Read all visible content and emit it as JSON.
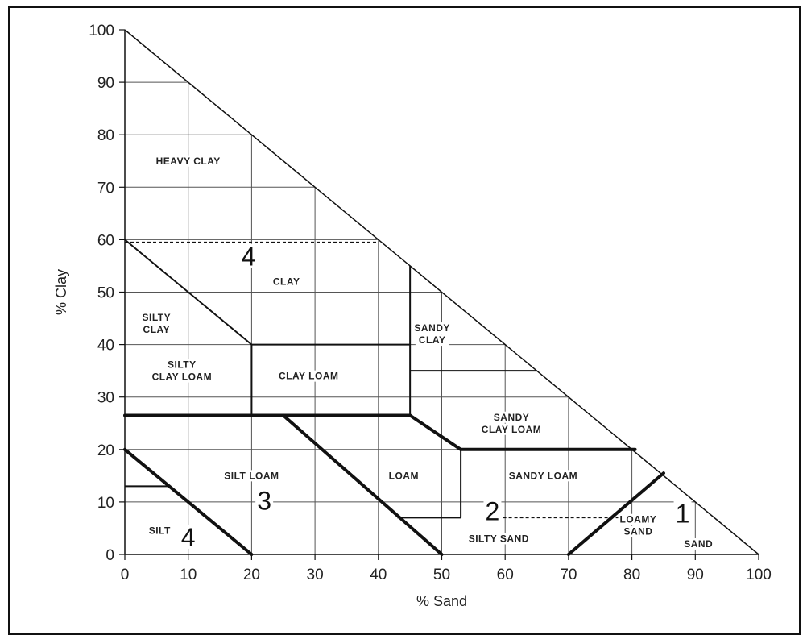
{
  "chart_data": {
    "type": "ternary-texture-triangle",
    "xlabel": "% Sand",
    "ylabel": "% Clay",
    "xlim": [
      0,
      100
    ],
    "ylim": [
      0,
      100
    ],
    "xticks": [
      0,
      10,
      20,
      30,
      40,
      50,
      60,
      70,
      80,
      90,
      100
    ],
    "yticks": [
      0,
      10,
      20,
      30,
      40,
      50,
      60,
      70,
      80,
      90,
      100
    ],
    "grid": true,
    "regions": [
      {
        "label": [
          "HEAVY CLAY"
        ],
        "x": 10,
        "y": 75
      },
      {
        "label": [
          "CLAY"
        ],
        "x": 25.5,
        "y": 52
      },
      {
        "label": [
          "SILTY",
          "CLAY"
        ],
        "x": 5,
        "y": 44
      },
      {
        "label": [
          "SILTY",
          "CLAY LOAM"
        ],
        "x": 9,
        "y": 35
      },
      {
        "label": [
          "CLAY LOAM"
        ],
        "x": 29,
        "y": 34
      },
      {
        "label": [
          "SANDY",
          "CLAY"
        ],
        "x": 48.5,
        "y": 42
      },
      {
        "label": [
          "SANDY",
          "CLAY LOAM"
        ],
        "x": 61,
        "y": 25
      },
      {
        "label": [
          "SILT LOAM"
        ],
        "x": 20,
        "y": 15
      },
      {
        "label": [
          "LOAM"
        ],
        "x": 44,
        "y": 15
      },
      {
        "label": [
          "SANDY LOAM"
        ],
        "x": 66,
        "y": 15
      },
      {
        "label": [
          "SILT"
        ],
        "x": 5.5,
        "y": 4.5
      },
      {
        "label": [
          "SILTY SAND"
        ],
        "x": 59,
        "y": 3
      },
      {
        "label": [
          "LOAMY",
          "SAND"
        ],
        "x": 81,
        "y": 5.5
      },
      {
        "label": [
          "SAND"
        ],
        "x": 90.5,
        "y": 2
      }
    ],
    "zone_labels": [
      {
        "text": "4",
        "x": 19.5,
        "y": 55.5
      },
      {
        "text": "3",
        "x": 22,
        "y": 9
      },
      {
        "text": "4",
        "x": 10,
        "y": 2
      },
      {
        "text": "2",
        "x": 58,
        "y": 7
      },
      {
        "text": "1",
        "x": 88,
        "y": 6.5
      }
    ],
    "grid_lines": [
      [
        [
          10,
          0
        ],
        [
          10,
          90
        ]
      ],
      [
        [
          20,
          0
        ],
        [
          20,
          80
        ]
      ],
      [
        [
          30,
          0
        ],
        [
          30,
          70
        ]
      ],
      [
        [
          40,
          0
        ],
        [
          40,
          60
        ]
      ],
      [
        [
          50,
          0
        ],
        [
          50,
          50
        ]
      ],
      [
        [
          60,
          0
        ],
        [
          60,
          40
        ]
      ],
      [
        [
          70,
          0
        ],
        [
          70,
          30
        ]
      ],
      [
        [
          80,
          0
        ],
        [
          80,
          20
        ]
      ],
      [
        [
          90,
          0
        ],
        [
          90,
          10
        ]
      ],
      [
        [
          0,
          10
        ],
        [
          90,
          10
        ]
      ],
      [
        [
          0,
          20
        ],
        [
          80,
          20
        ]
      ],
      [
        [
          0,
          30
        ],
        [
          70,
          30
        ]
      ],
      [
        [
          0,
          40
        ],
        [
          60,
          40
        ]
      ],
      [
        [
          0,
          50
        ],
        [
          50,
          50
        ]
      ],
      [
        [
          0,
          60
        ],
        [
          40,
          60
        ]
      ],
      [
        [
          0,
          70
        ],
        [
          30,
          70
        ]
      ],
      [
        [
          0,
          80
        ],
        [
          20,
          80
        ]
      ],
      [
        [
          0,
          90
        ],
        [
          10,
          90
        ]
      ]
    ],
    "thin_boundaries": [
      [
        [
          20,
          40
        ],
        [
          45,
          40
        ]
      ],
      [
        [
          45,
          55
        ],
        [
          45,
          26.5
        ]
      ],
      [
        [
          45,
          35
        ],
        [
          65,
          35
        ]
      ],
      [
        [
          20,
          40
        ],
        [
          20,
          26.5
        ]
      ],
      [
        [
          0,
          13
        ],
        [
          7,
          13
        ]
      ],
      [
        [
          0,
          60
        ],
        [
          20,
          40
        ]
      ],
      [
        [
          43,
          7
        ],
        [
          53,
          7
        ]
      ],
      [
        [
          53,
          7
        ],
        [
          53,
          20
        ]
      ]
    ],
    "thick_boundaries": [
      [
        [
          0,
          26.5
        ],
        [
          45,
          26.5
        ]
      ],
      [
        [
          45,
          26.5
        ],
        [
          53,
          20
        ]
      ],
      [
        [
          53,
          20
        ],
        [
          80.5,
          20
        ]
      ],
      [
        [
          0,
          20
        ],
        [
          20,
          0
        ]
      ],
      [
        [
          25,
          26.5
        ],
        [
          50,
          0
        ]
      ],
      [
        [
          70,
          0
        ],
        [
          85,
          15.5
        ]
      ]
    ],
    "dashed_boundaries": [
      [
        [
          0,
          59.5
        ],
        [
          40,
          59.5
        ]
      ],
      [
        [
          57,
          7
        ],
        [
          78,
          7
        ]
      ]
    ]
  }
}
